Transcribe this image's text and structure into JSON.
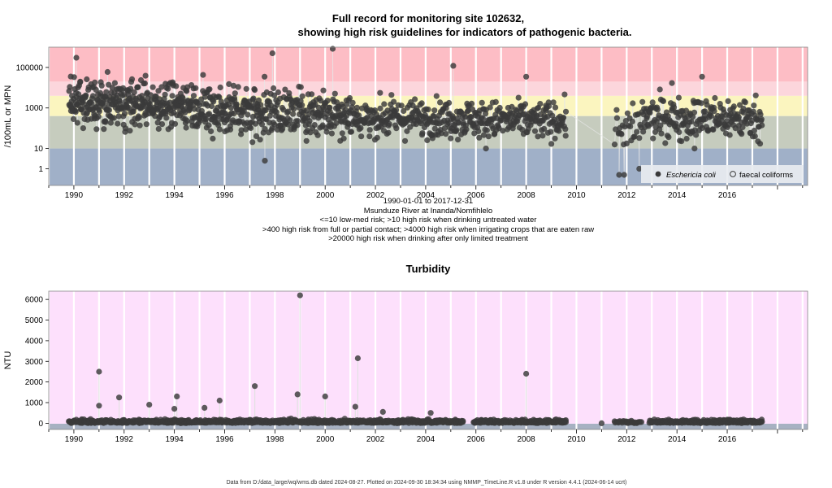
{
  "chart_data": [
    {
      "type": "scatter",
      "title_line1": "Full record for monitoring site 102632,",
      "title_line2": "showing high risk guidelines for indicators of pathogenic bacteria.",
      "ylabel": "/100mL or MPN",
      "y_scale": "log",
      "ylim": [
        0.15,
        1000000
      ],
      "xlim": [
        1989,
        2019.2
      ],
      "x_ticks": [
        "1990",
        "1992",
        "1994",
        "1996",
        "1998",
        "2000",
        "2002",
        "2004",
        "2006",
        "2008",
        "2010",
        "2012",
        "2014",
        "2016"
      ],
      "y_ticks": [
        "1",
        "10",
        "1000",
        "100000"
      ],
      "y_tick_values": [
        1,
        10,
        1000,
        100000
      ],
      "risk_bands": [
        {
          "from": 0.15,
          "to": 10,
          "color": "#a0b0c8"
        },
        {
          "from": 10,
          "to": 400,
          "color": "#c6ccbe"
        },
        {
          "from": 400,
          "to": 4000,
          "color": "#fbf5bf"
        },
        {
          "from": 4000,
          "to": 20000,
          "color": "#fcd6dc"
        },
        {
          "from": 20000,
          "to": 1000000,
          "color": "#fdbdc5"
        }
      ],
      "series": [
        {
          "name": "Eschericia coli",
          "marker": "filled-circle",
          "color": "#3a3a3a"
        },
        {
          "name": "faecal coliforms",
          "marker": "open-circle",
          "color": "#3a3a3a"
        }
      ],
      "legend_position": "bottom-right",
      "notable_points": [
        {
          "x": 1990.1,
          "y": 300000
        },
        {
          "x": 1997.9,
          "y": 500000
        },
        {
          "x": 2000.3,
          "y": 1600000
        },
        {
          "x": 2005.1,
          "y": 120000
        },
        {
          "x": 2008.0,
          "y": 35000
        },
        {
          "x": 2015.0,
          "y": 35000
        },
        {
          "x": 1997.6,
          "y": 2.5
        },
        {
          "x": 2006.4,
          "y": 10
        },
        {
          "x": 2011.7,
          "y": 0.5
        },
        {
          "x": 2011.9,
          "y": 0.5
        },
        {
          "x": 2012.5,
          "y": 1
        },
        {
          "x": 2013.8,
          "y": 17000
        },
        {
          "x": 2014.7,
          "y": 10
        }
      ],
      "notes": [
        "1990-01-01 to 2017-12-31",
        "Msunduze River at Inanda/Nomfihlelo",
        "<=10 low-med risk; >10 high risk when drinking untreated water",
        ">400 high risk from full or partial contact; >4000 high risk when irrigating crops that are eaten raw",
        ">20000 high risk when drinking after only limited treatment"
      ]
    },
    {
      "type": "scatter",
      "title": "Turbidity",
      "ylabel": "NTU",
      "ylim": [
        -300,
        6400
      ],
      "xlim": [
        1989,
        2019.2
      ],
      "x_ticks": [
        "1990",
        "1992",
        "1994",
        "1996",
        "1998",
        "2000",
        "2002",
        "2004",
        "2006",
        "2008",
        "2010",
        "2012",
        "2014",
        "2016"
      ],
      "y_ticks": [
        "0",
        "1000",
        "2000",
        "3000",
        "4000",
        "5000",
        "6000"
      ],
      "y_tick_values": [
        0,
        1000,
        2000,
        3000,
        4000,
        5000,
        6000
      ],
      "notable_points": [
        {
          "x": 1991.0,
          "y": 2500
        },
        {
          "x": 1991.0,
          "y": 850
        },
        {
          "x": 1991.8,
          "y": 1250
        },
        {
          "x": 1993.0,
          "y": 900
        },
        {
          "x": 1994.1,
          "y": 1300
        },
        {
          "x": 1994.0,
          "y": 700
        },
        {
          "x": 1995.2,
          "y": 750
        },
        {
          "x": 1995.8,
          "y": 1100
        },
        {
          "x": 1997.2,
          "y": 1800
        },
        {
          "x": 1999.0,
          "y": 6200
        },
        {
          "x": 1998.9,
          "y": 1400
        },
        {
          "x": 2000.0,
          "y": 1300
        },
        {
          "x": 2001.3,
          "y": 3150
        },
        {
          "x": 2001.2,
          "y": 800
        },
        {
          "x": 2002.3,
          "y": 550
        },
        {
          "x": 2004.2,
          "y": 500
        },
        {
          "x": 2008.0,
          "y": 2400
        },
        {
          "x": 2011.0,
          "y": 0
        }
      ]
    }
  ],
  "footer": "Data from D:/data_large/wq/wms.db dated 2024-08-27. Plotted on 2024-09-30 18:34:34 using NMMP_TimeLine.R v1.8 under R version 4.4.1 (2024-06-14 ucrt)"
}
